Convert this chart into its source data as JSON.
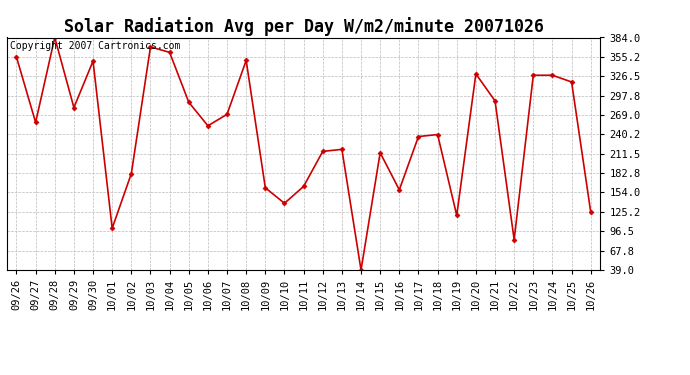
{
  "title": "Solar Radiation Avg per Day W/m2/minute 20071026",
  "copyright": "Copyright 2007 Cartronics.com",
  "dates": [
    "09/26",
    "09/27",
    "09/28",
    "09/29",
    "09/30",
    "10/01",
    "10/02",
    "10/03",
    "10/04",
    "10/05",
    "10/06",
    "10/07",
    "10/08",
    "10/09",
    "10/10",
    "10/11",
    "10/12",
    "10/13",
    "10/14",
    "10/15",
    "10/16",
    "10/17",
    "10/18",
    "10/19",
    "10/20",
    "10/21",
    "10/22",
    "10/23",
    "10/24",
    "10/25",
    "10/26"
  ],
  "values": [
    355.0,
    258.0,
    384.0,
    280.0,
    349.0,
    101.0,
    182.0,
    370.0,
    362.0,
    288.0,
    253.0,
    270.0,
    350.0,
    161.0,
    138.0,
    163.0,
    215.0,
    218.0,
    39.0,
    213.0,
    158.0,
    237.0,
    240.0,
    120.0,
    330.0,
    290.0,
    84.0,
    328.0,
    328.0,
    318.0,
    125.0
  ],
  "line_color": "#cc0000",
  "marker": "D",
  "marker_size": 2.5,
  "bg_color": "#ffffff",
  "grid_color": "#bbbbbb",
  "ylim": [
    39.0,
    384.0
  ],
  "yticks": [
    39.0,
    67.8,
    96.5,
    125.2,
    154.0,
    182.8,
    211.5,
    240.2,
    269.0,
    297.8,
    326.5,
    355.2,
    384.0
  ],
  "title_fontsize": 12,
  "tick_fontsize": 7.5,
  "copyright_fontsize": 7
}
